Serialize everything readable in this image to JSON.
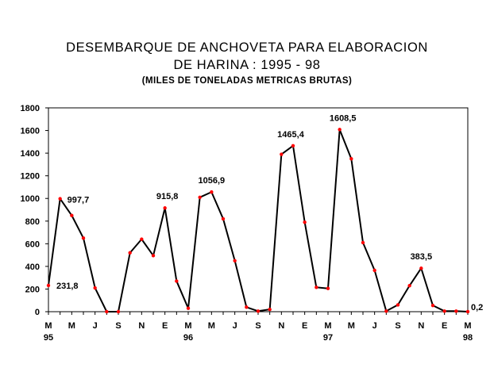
{
  "chart_data": {
    "type": "line",
    "title": "DESEMBARQUE DE ANCHOVETA PARA ELABORACION",
    "title_line2": "DE HARINA : 1995 - 98",
    "subtitle": "(MILES  DE TONELADAS METRICAS BRUTAS)",
    "xlabel": "",
    "ylabel": "",
    "ylim": [
      0,
      1800
    ],
    "yticks": [
      "0",
      "200",
      "400",
      "600",
      "800",
      "1000",
      "1200",
      "1400",
      "1600",
      "1800"
    ],
    "x_tick_labels": [
      "M",
      "M",
      "J",
      "S",
      "N",
      "E",
      "M",
      "M",
      "J",
      "S",
      "N",
      "E",
      "M",
      "M",
      "J",
      "S",
      "N",
      "E",
      "M"
    ],
    "year_labels": [
      {
        "tick_index": 0,
        "text": "95"
      },
      {
        "tick_index": 6,
        "text": "96"
      },
      {
        "tick_index": 12,
        "text": "97"
      },
      {
        "tick_index": 18,
        "text": "98"
      }
    ],
    "series": [
      {
        "name": "Desembarque",
        "color": "#000000",
        "marker_color": "#ff0000",
        "values": [
          231.8,
          997.7,
          850,
          650,
          210,
          0,
          0,
          520,
          640,
          495,
          915.8,
          270,
          30,
          1010,
          1056.9,
          820,
          450,
          40,
          5,
          20,
          1390,
          1465.4,
          790,
          215,
          205,
          1608.5,
          1350,
          610,
          365,
          5,
          60,
          230,
          383.5,
          55,
          5,
          5,
          0.2
        ]
      }
    ],
    "data_labels": [
      {
        "index": 0,
        "text": "231,8"
      },
      {
        "index": 1,
        "text": "997,7"
      },
      {
        "index": 10,
        "text": "915,8"
      },
      {
        "index": 14,
        "text": "1056,9"
      },
      {
        "index": 21,
        "text": "1465,4"
      },
      {
        "index": 25,
        "text": "1608,5"
      },
      {
        "index": 32,
        "text": "383,5"
      },
      {
        "index": 36,
        "text": "0,2"
      }
    ]
  }
}
